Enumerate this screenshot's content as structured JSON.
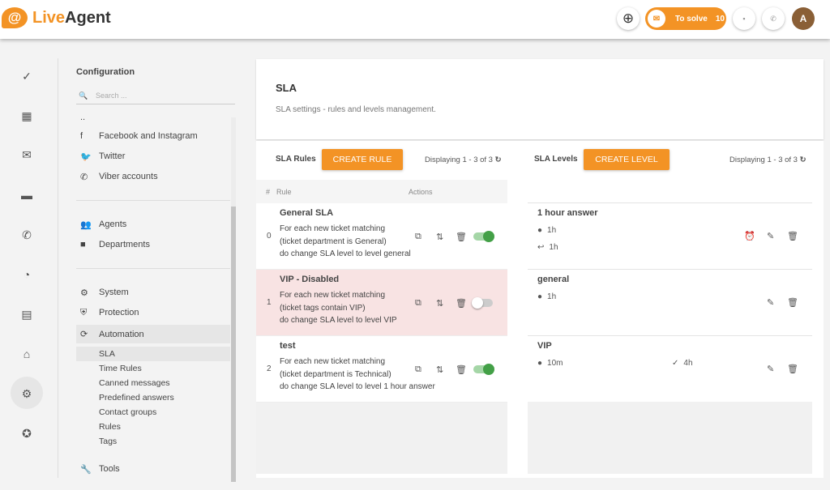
{
  "header": {
    "logo": {
      "part1": "Live",
      "part2": "Agent"
    },
    "to_solve_label": "To solve",
    "to_solve_count": "10",
    "avatar_initial": "A"
  },
  "config": {
    "title": "Configuration",
    "search_placeholder": "Search ...",
    "ellipsis": "..",
    "channels": [
      "Facebook and Instagram",
      "Twitter",
      "Viber accounts"
    ],
    "people": [
      "Agents",
      "Departments"
    ],
    "system": [
      "System",
      "Protection",
      "Automation"
    ],
    "automation_items": [
      "SLA",
      "Time Rules",
      "Canned messages",
      "Predefined answers",
      "Contact groups",
      "Rules",
      "Tags"
    ],
    "tools": "Tools"
  },
  "page": {
    "title": "SLA",
    "description": "SLA settings - rules and levels management."
  },
  "rules": {
    "title": "SLA Rules",
    "create_label": "CREATE RULE",
    "displaying": "Displaying 1 - 3 of 3",
    "columns": {
      "index": "#",
      "rule": "Rule",
      "actions": "Actions"
    },
    "rows": [
      {
        "index": "0",
        "name": "General SLA",
        "lines": [
          "For each new ticket matching",
          "(ticket department is General)",
          "do change SLA level to level general"
        ],
        "enabled": true
      },
      {
        "index": "1",
        "name": "VIP - Disabled",
        "lines": [
          "For each new ticket matching",
          "(ticket tags contain VIP)",
          "do change SLA level to level VIP"
        ],
        "enabled": false
      },
      {
        "index": "2",
        "name": "test",
        "lines": [
          "For each new ticket matching",
          "(ticket department is Technical)",
          "do change SLA level to level 1 hour answer"
        ],
        "enabled": true
      }
    ]
  },
  "levels": {
    "title": "SLA Levels",
    "create_label": "CREATE LEVEL",
    "displaying": "Displaying 1 - 3 of 3",
    "rows": [
      {
        "name": "1 hour answer",
        "first": "1h",
        "reply": "1h"
      },
      {
        "name": "general",
        "first": "1h"
      },
      {
        "name": "VIP",
        "first": "10m",
        "resolve": "4h"
      }
    ]
  },
  "colors": {
    "accent": "#f39325",
    "toggle_on": "#43a047",
    "disabled_row": "#f8e3e3",
    "avatar": "#8a5f36"
  }
}
